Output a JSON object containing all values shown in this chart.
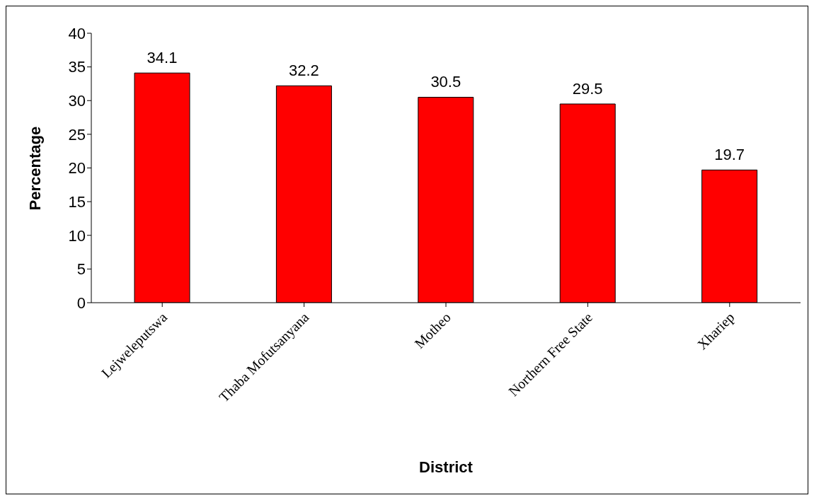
{
  "chart_data": {
    "type": "bar",
    "xlabel": "District",
    "ylabel": "Percentage",
    "categories": [
      "Lejweleputswa",
      "Thaba Mofutsanyana",
      "Motheo",
      "Northern Free State",
      "Xhariep"
    ],
    "values": [
      34.1,
      32.2,
      30.5,
      29.5,
      19.7
    ],
    "color": "#ff0000",
    "ylim": [
      0,
      40
    ],
    "yticks": [
      0,
      5,
      10,
      15,
      20,
      25,
      30,
      35,
      40
    ],
    "data_labels": true
  }
}
